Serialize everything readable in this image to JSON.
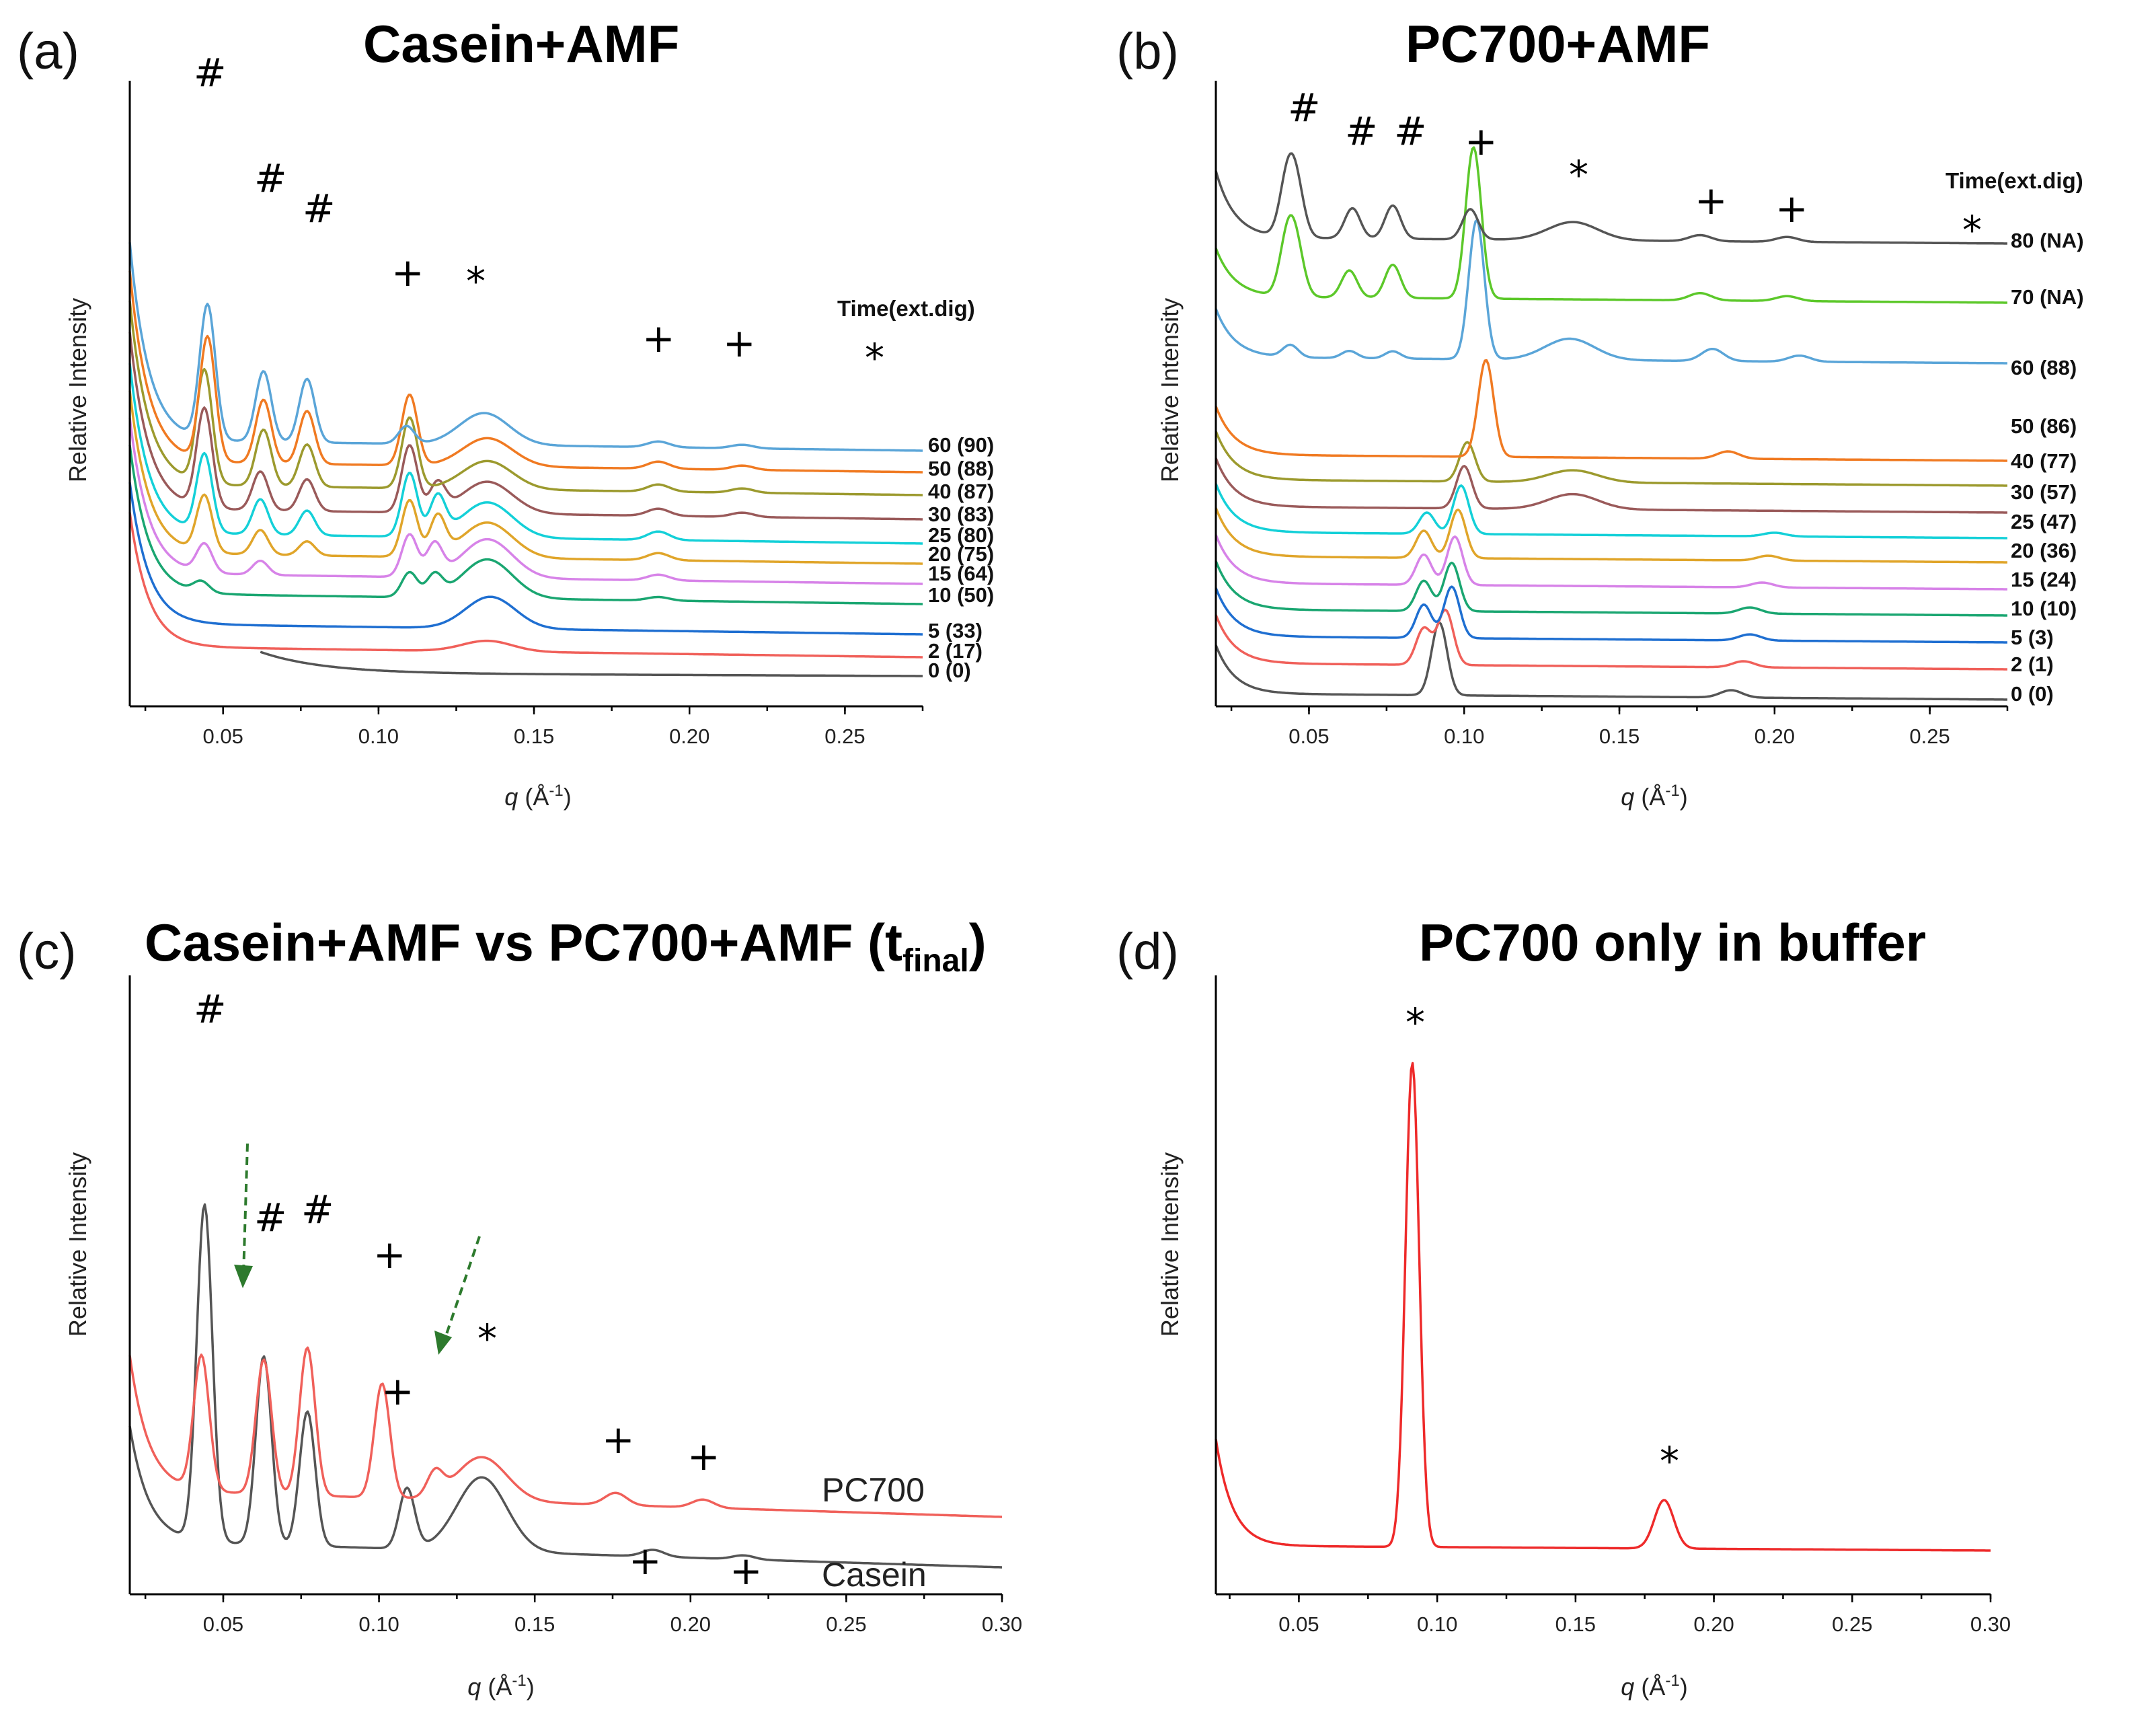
{
  "figure": {
    "panels": [
      {
        "id": "a",
        "letter": "(a)",
        "title": "Casein+AMF",
        "xlabel_pre": "q",
        "xlabel_post": " (Å",
        "xlabel_sup": "-1",
        "xlabel_close": ")",
        "ylabel": "Relative Intensity",
        "xlim": [
          0.02,
          0.275
        ],
        "xticks": [
          "0.05",
          "0.10",
          "0.15",
          "0.20",
          "0.25"
        ],
        "legend_title": "Time(ext.dig)"
      },
      {
        "id": "b",
        "letter": "(b)",
        "title": "PC700+AMF",
        "xlabel_pre": "q",
        "xlabel_post": " (Å",
        "xlabel_sup": "-1",
        "xlabel_close": ")",
        "ylabel": "Relative Intensity",
        "xlim": [
          0.02,
          0.275
        ],
        "xticks": [
          "0.05",
          "0.10",
          "0.15",
          "0.20",
          "0.25"
        ],
        "legend_title": "Time(ext.dig)"
      },
      {
        "id": "c",
        "letter": "(c)",
        "title": "Casein+AMF vs PC700+AMF (t",
        "title_sub": "final",
        "title_close": ")",
        "xlabel_pre": "q",
        "xlabel_post": " (Å",
        "xlabel_sup": "-1",
        "xlabel_close": ")",
        "ylabel": "Relative Intensity",
        "xlim": [
          0.02,
          0.3
        ],
        "xticks": [
          "0.05",
          "0.10",
          "0.15",
          "0.20",
          "0.25",
          "0.30"
        ]
      },
      {
        "id": "d",
        "letter": "(d)",
        "title": "PC700 only in buffer",
        "xlabel_pre": "q",
        "xlabel_post": " (Å",
        "xlabel_sup": "-1",
        "xlabel_close": ")",
        "ylabel": "Relative Intensity",
        "xlim": [
          0.02,
          0.3
        ],
        "xticks": [
          "0.05",
          "0.10",
          "0.15",
          "0.20",
          "0.25",
          "0.30"
        ]
      }
    ]
  },
  "chart_data": [
    {
      "type": "line",
      "title": "Casein+AMF",
      "xlabel": "q (Å-1)",
      "ylabel": "Relative Intensity",
      "xlim": [
        0.02,
        0.275
      ],
      "legend_title": "Time(ext.dig)",
      "series": [
        {
          "name": "0 (0)",
          "color": "#555555",
          "peaks": []
        },
        {
          "name": "2 (17)",
          "color": "#f0605a",
          "peaks": [
            {
              "q": 0.135,
              "h": 0.15
            }
          ]
        },
        {
          "name": "5 (33)",
          "color": "#1f6fd1",
          "peaks": [
            {
              "q": 0.136,
              "h": 0.45
            }
          ]
        },
        {
          "name": "10 (50)",
          "color": "#1aa671",
          "peaks": [
            {
              "q": 0.043,
              "h": 0.15
            },
            {
              "q": 0.11,
              "h": 0.35
            },
            {
              "q": 0.118,
              "h": 0.3
            },
            {
              "q": 0.135,
              "h": 0.55
            },
            {
              "q": 0.19,
              "h": 0.05
            }
          ]
        },
        {
          "name": "15 (64)",
          "color": "#d783e8",
          "peaks": [
            {
              "q": 0.044,
              "h": 0.4
            },
            {
              "q": 0.062,
              "h": 0.2
            },
            {
              "q": 0.11,
              "h": 0.6
            },
            {
              "q": 0.118,
              "h": 0.45
            },
            {
              "q": 0.135,
              "h": 0.55
            },
            {
              "q": 0.19,
              "h": 0.08
            }
          ]
        },
        {
          "name": "20 (75)",
          "color": "#e0a52a",
          "peaks": [
            {
              "q": 0.044,
              "h": 0.8
            },
            {
              "q": 0.062,
              "h": 0.35
            },
            {
              "q": 0.077,
              "h": 0.2
            },
            {
              "q": 0.11,
              "h": 0.8
            },
            {
              "q": 0.119,
              "h": 0.55
            },
            {
              "q": 0.135,
              "h": 0.5
            },
            {
              "q": 0.19,
              "h": 0.1
            }
          ]
        },
        {
          "name": "25 (80)",
          "color": "#14d0d8",
          "peaks": [
            {
              "q": 0.044,
              "h": 1.1
            },
            {
              "q": 0.062,
              "h": 0.5
            },
            {
              "q": 0.077,
              "h": 0.35
            },
            {
              "q": 0.11,
              "h": 0.9
            },
            {
              "q": 0.119,
              "h": 0.55
            },
            {
              "q": 0.135,
              "h": 0.5
            },
            {
              "q": 0.19,
              "h": 0.12
            }
          ]
        },
        {
          "name": "30 (83)",
          "color": "#9a5a5a",
          "peaks": [
            {
              "q": 0.044,
              "h": 1.4
            },
            {
              "q": 0.062,
              "h": 0.55
            },
            {
              "q": 0.077,
              "h": 0.45
            },
            {
              "q": 0.11,
              "h": 0.95
            },
            {
              "q": 0.119,
              "h": 0.4
            },
            {
              "q": 0.135,
              "h": 0.45
            },
            {
              "q": 0.19,
              "h": 0.1
            },
            {
              "q": 0.217,
              "h": 0.06
            }
          ]
        },
        {
          "name": "40 (87)",
          "color": "#9c9a2e",
          "peaks": [
            {
              "q": 0.044,
              "h": 1.6
            },
            {
              "q": 0.063,
              "h": 0.8
            },
            {
              "q": 0.077,
              "h": 0.6
            },
            {
              "q": 0.11,
              "h": 1.0
            },
            {
              "q": 0.135,
              "h": 0.4
            },
            {
              "q": 0.19,
              "h": 0.1
            },
            {
              "q": 0.217,
              "h": 0.06
            }
          ]
        },
        {
          "name": "50 (88)",
          "color": "#f07a22",
          "peaks": [
            {
              "q": 0.045,
              "h": 1.75
            },
            {
              "q": 0.063,
              "h": 0.9
            },
            {
              "q": 0.077,
              "h": 0.75
            },
            {
              "q": 0.11,
              "h": 1.0
            },
            {
              "q": 0.135,
              "h": 0.4
            },
            {
              "q": 0.19,
              "h": 0.1
            },
            {
              "q": 0.217,
              "h": 0.06
            }
          ]
        },
        {
          "name": "60 (90)",
          "color": "#5aa5d8",
          "peaks": [
            {
              "q": 0.045,
              "h": 1.9
            },
            {
              "q": 0.063,
              "h": 1.0
            },
            {
              "q": 0.077,
              "h": 0.9
            },
            {
              "q": 0.109,
              "h": 0.25
            },
            {
              "q": 0.134,
              "h": 0.45
            },
            {
              "q": 0.19,
              "h": 0.08
            },
            {
              "q": 0.217,
              "h": 0.05
            }
          ]
        }
      ]
    },
    {
      "type": "line",
      "title": "PC700+AMF",
      "xlabel": "q (Å-1)",
      "ylabel": "Relative Intensity",
      "xlim": [
        0.02,
        0.275
      ],
      "legend_title": "Time(ext.dig)",
      "series": [
        {
          "name": "0 (0)",
          "color": "#555555",
          "peaks": [
            {
              "q": 0.092,
              "h": 1.2
            },
            {
              "q": 0.186,
              "h": 0.12
            }
          ]
        },
        {
          "name": "2 (1)",
          "color": "#f0605a",
          "peaks": [
            {
              "q": 0.087,
              "h": 0.6
            },
            {
              "q": 0.094,
              "h": 0.9
            },
            {
              "q": 0.19,
              "h": 0.1
            }
          ]
        },
        {
          "name": "5 (3)",
          "color": "#1f6fd1",
          "peaks": [
            {
              "q": 0.087,
              "h": 0.55
            },
            {
              "q": 0.096,
              "h": 0.85
            },
            {
              "q": 0.192,
              "h": 0.1
            }
          ]
        },
        {
          "name": "10 (10)",
          "color": "#1aa671",
          "peaks": [
            {
              "q": 0.087,
              "h": 0.5
            },
            {
              "q": 0.096,
              "h": 0.8
            },
            {
              "q": 0.192,
              "h": 0.1
            }
          ]
        },
        {
          "name": "15 (24)",
          "color": "#d783e8",
          "peaks": [
            {
              "q": 0.087,
              "h": 0.5
            },
            {
              "q": 0.097,
              "h": 0.8
            },
            {
              "q": 0.196,
              "h": 0.08
            }
          ]
        },
        {
          "name": "20 (36)",
          "color": "#e0a52a",
          "peaks": [
            {
              "q": 0.087,
              "h": 0.45
            },
            {
              "q": 0.098,
              "h": 0.8
            },
            {
              "q": 0.198,
              "h": 0.08
            }
          ]
        },
        {
          "name": "25 (47)",
          "color": "#14d0d8",
          "peaks": [
            {
              "q": 0.088,
              "h": 0.35
            },
            {
              "q": 0.099,
              "h": 0.8
            },
            {
              "q": 0.2,
              "h": 0.06
            }
          ]
        },
        {
          "name": "30 (57)",
          "color": "#9a5a5a",
          "peaks": [
            {
              "q": 0.1,
              "h": 0.7
            },
            {
              "q": 0.135,
              "h": 0.25
            }
          ]
        },
        {
          "name": "40 (77)",
          "color": "#9c9a2e",
          "peaks": [
            {
              "q": 0.101,
              "h": 0.65
            },
            {
              "q": 0.135,
              "h": 0.2
            }
          ]
        },
        {
          "name": "50 (86)",
          "color": "#f07a22",
          "peaks": [
            {
              "q": 0.107,
              "h": 1.6
            },
            {
              "q": 0.185,
              "h": 0.12
            }
          ]
        },
        {
          "name": "60 (88)",
          "color": "#5aa5d8",
          "peaks": [
            {
              "q": 0.044,
              "h": 0.2
            },
            {
              "q": 0.063,
              "h": 0.12
            },
            {
              "q": 0.077,
              "h": 0.12
            },
            {
              "q": 0.104,
              "h": 2.3
            },
            {
              "q": 0.134,
              "h": 0.35
            },
            {
              "q": 0.18,
              "h": 0.2
            },
            {
              "q": 0.208,
              "h": 0.1
            }
          ]
        },
        {
          "name": "70 (NA)",
          "color": "#5cc82a",
          "peaks": [
            {
              "q": 0.043,
              "h": 0.9
            },
            {
              "q": 0.046,
              "h": 0.7
            },
            {
              "q": 0.063,
              "h": 0.45
            },
            {
              "q": 0.077,
              "h": 0.55
            },
            {
              "q": 0.103,
              "h": 2.5
            },
            {
              "q": 0.176,
              "h": 0.12
            },
            {
              "q": 0.204,
              "h": 0.08
            }
          ]
        },
        {
          "name": "80 (NA)",
          "color": "#555555",
          "peaks": [
            {
              "q": 0.043,
              "h": 0.9
            },
            {
              "q": 0.046,
              "h": 0.75
            },
            {
              "q": 0.064,
              "h": 0.5
            },
            {
              "q": 0.077,
              "h": 0.55
            },
            {
              "q": 0.102,
              "h": 0.5
            },
            {
              "q": 0.135,
              "h": 0.3
            },
            {
              "q": 0.176,
              "h": 0.1
            },
            {
              "q": 0.204,
              "h": 0.08
            }
          ]
        }
      ]
    },
    {
      "type": "line",
      "title": "Casein+AMF vs PC700+AMF (tfinal)",
      "xlabel": "q (Å-1)",
      "ylabel": "Relative Intensity",
      "xlim": [
        0.02,
        0.3
      ],
      "series": [
        {
          "name": "Casein",
          "color": "#555555",
          "peaks": [
            {
              "q": 0.044,
              "h": 5.0
            },
            {
              "q": 0.063,
              "h": 2.8
            },
            {
              "q": 0.077,
              "h": 2.0
            },
            {
              "q": 0.109,
              "h": 0.9
            },
            {
              "q": 0.133,
              "h": 1.1
            },
            {
              "q": 0.188,
              "h": 0.1
            },
            {
              "q": 0.217,
              "h": 0.06
            }
          ]
        },
        {
          "name": "PC700",
          "color": "#f0605a",
          "peaks": [
            {
              "q": 0.043,
              "h": 2.0
            },
            {
              "q": 0.063,
              "h": 2.0
            },
            {
              "q": 0.077,
              "h": 2.2
            },
            {
              "q": 0.101,
              "h": 1.7
            },
            {
              "q": 0.118,
              "h": 0.35
            },
            {
              "q": 0.133,
              "h": 0.65
            },
            {
              "q": 0.176,
              "h": 0.18
            },
            {
              "q": 0.204,
              "h": 0.12
            }
          ]
        }
      ]
    },
    {
      "type": "line",
      "title": "PC700 only in buffer",
      "xlabel": "q (Å-1)",
      "ylabel": "Relative Intensity",
      "xlim": [
        0.02,
        0.3
      ],
      "series": [
        {
          "name": "PC700",
          "color": "#ee2a2a",
          "peaks": [
            {
              "q": 0.091,
              "h": 10.0
            },
            {
              "q": 0.182,
              "h": 1.0
            }
          ]
        }
      ]
    }
  ],
  "annotations": {
    "hash": "#",
    "plus": "+",
    "star": "*",
    "c_series_labels": [
      "PC700",
      "Casein"
    ]
  }
}
